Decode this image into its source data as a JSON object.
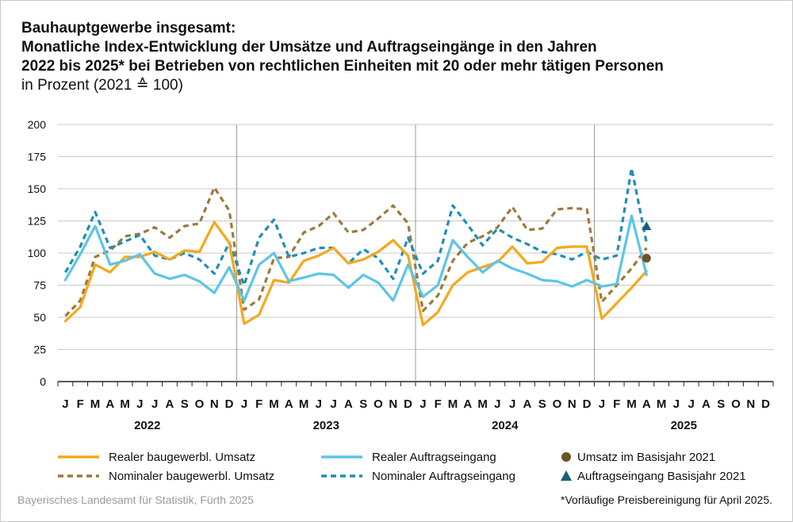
{
  "title": {
    "line1": "Bauhauptgewerbe insgesamt:",
    "line2": "Monatliche Index-Entwicklung der Umsätze und Auftragseingänge in den Jahren",
    "line3": "2022 bis 2025* bei Betrieben von rechtlichen Einheiten mit 20 oder mehr tätigen Personen",
    "line4": "in Prozent (2021 ≙ 100)"
  },
  "source": "Bayerisches Landesamt für Statistik, Fürth 2025",
  "footnote": "*Vorläufige Preisbereinigung für April 2025.",
  "colors": {
    "real_umsatz": "#f5a81c",
    "real_auftrag": "#5ec4e6",
    "nom_umsatz": "#9c7a3c",
    "nom_auftrag": "#1f8fb5",
    "basis_umsatz": "#6b5424",
    "basis_auftrag": "#1a5d7a"
  },
  "chart_data": {
    "type": "line",
    "ylim": [
      0,
      200
    ],
    "yticks": [
      0,
      25,
      50,
      75,
      100,
      125,
      150,
      175,
      200
    ],
    "grid": true,
    "month_labels": [
      "J",
      "F",
      "M",
      "A",
      "M",
      "J",
      "J",
      "A",
      "S",
      "O",
      "N",
      "D"
    ],
    "years": [
      "2022",
      "2023",
      "2024",
      "2025"
    ],
    "legend_position": "bottom",
    "series": [
      {
        "name": "Realer baugewerbl. Umsatz",
        "style": "solid",
        "color_key": "real_umsatz",
        "values": [
          47,
          58,
          91,
          85,
          97,
          97,
          101,
          95,
          102,
          101,
          124,
          108,
          45,
          52,
          79,
          77,
          94,
          98,
          104,
          92,
          95,
          101,
          110,
          98,
          44,
          54,
          75,
          85,
          89,
          93,
          105,
          92,
          93,
          104,
          105,
          105,
          49,
          61,
          73,
          86
        ]
      },
      {
        "name": "Nominaler baugewerbl. Umsatz",
        "style": "dashed",
        "color_key": "nom_umsatz",
        "values": [
          51,
          63,
          97,
          102,
          113,
          115,
          120,
          112,
          121,
          123,
          151,
          133,
          56,
          64,
          96,
          97,
          116,
          121,
          131,
          116,
          118,
          127,
          137,
          123,
          55,
          67,
          94,
          108,
          113,
          120,
          136,
          118,
          119,
          134,
          135,
          134,
          62,
          75,
          88,
          104
        ]
      },
      {
        "name": "Realer Auftragseingang",
        "style": "solid",
        "color_key": "real_auftrag",
        "values": [
          79,
          99,
          121,
          91,
          94,
          99,
          84,
          80,
          83,
          78,
          69,
          89,
          63,
          91,
          100,
          78,
          81,
          84,
          83,
          73,
          83,
          77,
          63,
          91,
          66,
          75,
          110,
          97,
          85,
          94,
          88,
          84,
          79,
          78,
          74,
          79,
          74,
          76,
          129,
          83
        ]
      },
      {
        "name": "Nominaler Auftragseingang",
        "style": "dashed",
        "color_key": "nom_auftrag",
        "values": [
          85,
          105,
          132,
          104,
          109,
          114,
          98,
          95,
          100,
          95,
          84,
          108,
          75,
          112,
          126,
          97,
          100,
          104,
          104,
          92,
          103,
          96,
          80,
          112,
          84,
          94,
          137,
          122,
          106,
          119,
          112,
          107,
          101,
          99,
          95,
          101,
          95,
          98,
          166,
          108
        ]
      }
    ],
    "points": [
      {
        "name": "Umsatz im Basisjahr 2021",
        "month_index": 39,
        "value": 96,
        "marker": "circle",
        "color_key": "basis_umsatz"
      },
      {
        "name": "Auftragseingang Basisjahr 2021",
        "month_index": 39,
        "value": 121,
        "marker": "triangle",
        "color_key": "basis_auftrag"
      }
    ]
  }
}
